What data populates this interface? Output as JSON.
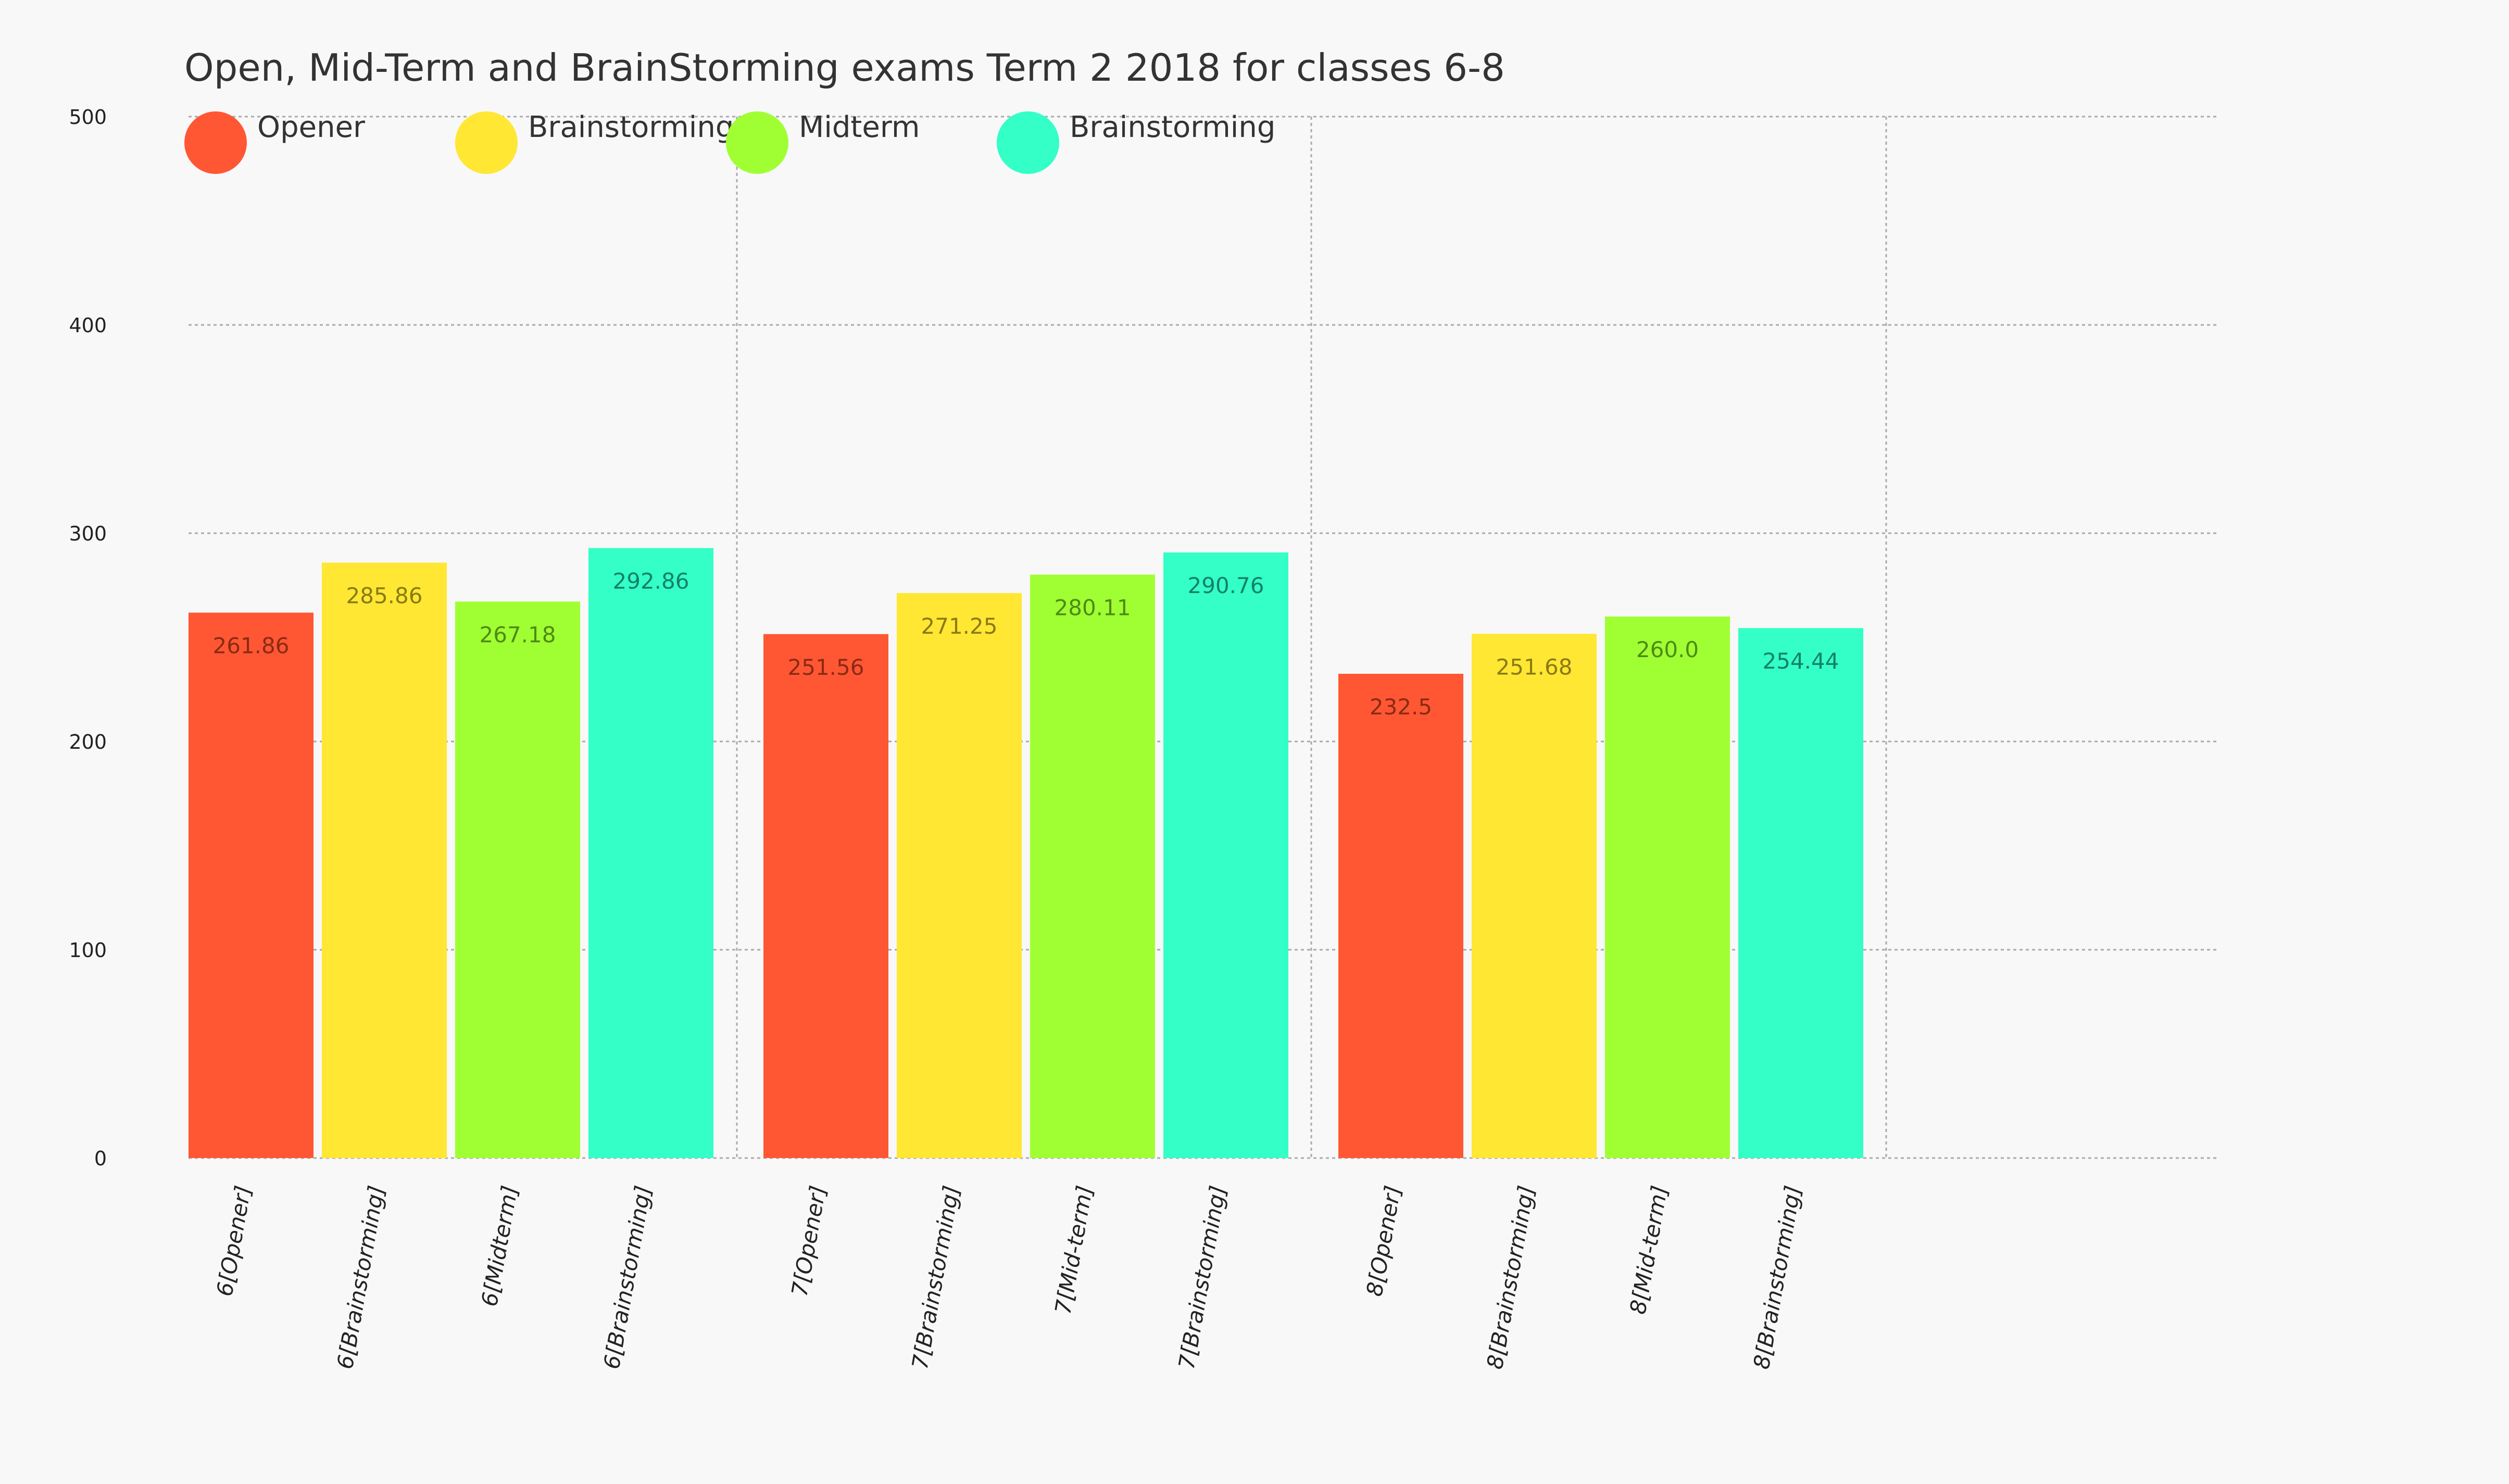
{
  "chart_data": {
    "type": "bar",
    "title": "Open, Mid-Term and BrainStorming exams Term 2 2018 for classes 6-8",
    "xlabel": "",
    "ylabel": "",
    "ylim": [
      0,
      500
    ],
    "yticks": [
      0,
      100,
      200,
      300,
      400,
      500
    ],
    "grid": true,
    "legend_position": "top-left",
    "legend": [
      {
        "name": "Opener",
        "color": "#ff5733"
      },
      {
        "name": "Brainstorming",
        "color": "#ffe733"
      },
      {
        "name": "Midterm",
        "color": "#a0ff33"
      },
      {
        "name": "Brainstorming",
        "color": "#33ffc7"
      }
    ],
    "categories": [
      "6[Opener]",
      "6[Brainstorming]",
      "6[Midterm]",
      "6[Brainstorming]",
      "7[Opener]",
      "7[Brainstorming]",
      "7[Mid-term]",
      "7[Brainstorming]",
      "8[Opener]",
      "8[Brainstorming]",
      "8[Mid-term]",
      "8[Brainstorming]"
    ],
    "values": [
      261.86,
      285.86,
      267.18,
      292.86,
      251.56,
      271.25,
      280.11,
      290.76,
      232.5,
      251.68,
      260.0,
      254.44
    ],
    "value_labels": [
      "261.86",
      "285.86",
      "267.18",
      "292.86",
      "251.56",
      "271.25",
      "280.11",
      "290.76",
      "232.5",
      "251.68",
      "260.0",
      "254.44"
    ],
    "bar_colors": [
      "#ff5733",
      "#ffe733",
      "#a0ff33",
      "#33ffc7",
      "#ff5733",
      "#ffe733",
      "#a0ff33",
      "#33ffc7",
      "#ff5733",
      "#ffe733",
      "#a0ff33",
      "#33ffc7"
    ],
    "label_colors": [
      "#8a2a14",
      "#8a7a14",
      "#4f8a14",
      "#14806a",
      "#8a2a14",
      "#8a7a14",
      "#4f8a14",
      "#14806a",
      "#8a2a14",
      "#8a7a14",
      "#4f8a14",
      "#14806a"
    ]
  }
}
